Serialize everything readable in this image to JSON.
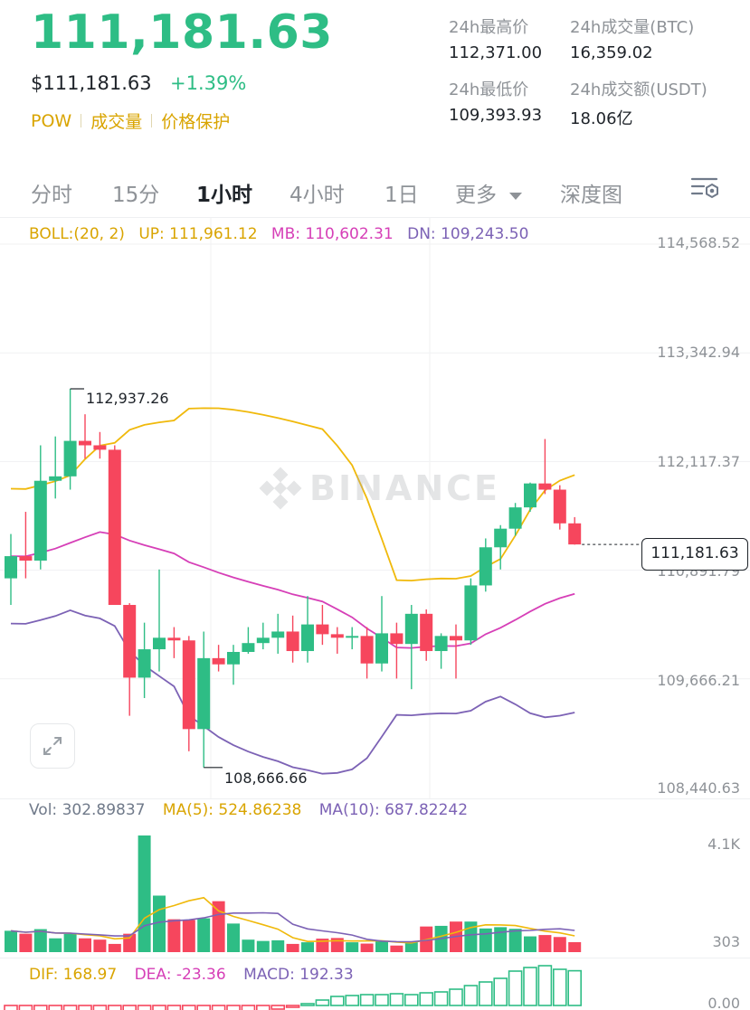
{
  "header": {
    "last_price": "111,181.63",
    "usd_price": "$111,181.63",
    "change_pct": "+1.39%",
    "tags": [
      "POW",
      "成交量",
      "价格保护"
    ]
  },
  "stats": [
    {
      "label": "24h最高价",
      "value": "112,371.00"
    },
    {
      "label": "24h成交量(BTC)",
      "value": "16,359.02"
    },
    {
      "label": "24h最低价",
      "value": "109,393.93"
    },
    {
      "label": "24h成交额(USDT)",
      "value": "18.06亿"
    }
  ],
  "tabs": [
    {
      "label": "分时",
      "active": false
    },
    {
      "label": "15分",
      "active": false
    },
    {
      "label": "1小时",
      "active": true
    },
    {
      "label": "4小时",
      "active": false
    },
    {
      "label": "1日",
      "active": false
    },
    {
      "label": "更多",
      "active": false
    },
    {
      "label": "深度图",
      "active": false
    }
  ],
  "boll": {
    "label": "BOLL:(20, 2)",
    "up": "UP: 111,961.12",
    "mb": "MB: 110,602.31",
    "dn": "DN: 109,243.50"
  },
  "price_axis": [
    "114,568.52",
    "113,342.94",
    "112,117.37",
    "110,891.79",
    "109,666.21",
    "108,440.63"
  ],
  "annotations": {
    "high": "112,937.26",
    "low": "108,666.66",
    "last_price_tag": "111,181.63"
  },
  "watermark": "BINANCE",
  "volume": {
    "vol": "Vol: 302.89837",
    "ma5": "MA(5): 524.86238",
    "ma10": "MA(10): 687.82242",
    "axis": [
      "4.1K",
      "303"
    ]
  },
  "macd": {
    "dif": "DIF: 168.97",
    "dea": "DEA: -23.36",
    "macd": "MACD: 192.33",
    "axis": [
      "0.00"
    ]
  },
  "colors": {
    "up": "#2ebd85",
    "down": "#f6465d",
    "boll_up": "#f0b90b",
    "boll_mb": "#d63fb7",
    "boll_dn": "#7c62b5",
    "accent": "#d9a400"
  },
  "chart_data": {
    "type": "candlestick",
    "interval": "1小时",
    "y_range": [
      108440.63,
      114568.52
    ],
    "candles": [
      {
        "o": 110800,
        "h": 111300,
        "l": 110500,
        "c": 111050
      },
      {
        "o": 111050,
        "h": 111550,
        "l": 110800,
        "c": 111000
      },
      {
        "o": 111000,
        "h": 112300,
        "l": 110900,
        "c": 111900
      },
      {
        "o": 111900,
        "h": 112400,
        "l": 111700,
        "c": 111950
      },
      {
        "o": 111950,
        "h": 112937,
        "l": 111800,
        "c": 112350
      },
      {
        "o": 112350,
        "h": 112650,
        "l": 112150,
        "c": 112300
      },
      {
        "o": 112300,
        "h": 112450,
        "l": 112150,
        "c": 112250
      },
      {
        "o": 112250,
        "h": 112300,
        "l": 110500,
        "c": 110500
      },
      {
        "o": 110500,
        "h": 110520,
        "l": 109250,
        "c": 109680
      },
      {
        "o": 109680,
        "h": 110300,
        "l": 109450,
        "c": 110000
      },
      {
        "o": 110000,
        "h": 110900,
        "l": 109750,
        "c": 110130
      },
      {
        "o": 110130,
        "h": 110250,
        "l": 109900,
        "c": 110100
      },
      {
        "o": 110100,
        "h": 110150,
        "l": 108850,
        "c": 109100
      },
      {
        "o": 109100,
        "h": 110200,
        "l": 108667,
        "c": 109900
      },
      {
        "o": 109900,
        "h": 110050,
        "l": 109750,
        "c": 109830
      },
      {
        "o": 109830,
        "h": 110050,
        "l": 109600,
        "c": 109970
      },
      {
        "o": 109970,
        "h": 110250,
        "l": 109950,
        "c": 110070
      },
      {
        "o": 110070,
        "h": 110300,
        "l": 110000,
        "c": 110130
      },
      {
        "o": 110130,
        "h": 110400,
        "l": 109950,
        "c": 110200
      },
      {
        "o": 110200,
        "h": 110380,
        "l": 109850,
        "c": 109980
      },
      {
        "o": 109980,
        "h": 110600,
        "l": 109850,
        "c": 110280
      },
      {
        "o": 110280,
        "h": 110500,
        "l": 110050,
        "c": 110170
      },
      {
        "o": 110170,
        "h": 110250,
        "l": 109950,
        "c": 110130
      },
      {
        "o": 110130,
        "h": 110250,
        "l": 110000,
        "c": 110150
      },
      {
        "o": 110150,
        "h": 110250,
        "l": 109670,
        "c": 109840
      },
      {
        "o": 109840,
        "h": 110600,
        "l": 109750,
        "c": 110180
      },
      {
        "o": 110180,
        "h": 110300,
        "l": 109670,
        "c": 110060
      },
      {
        "o": 110060,
        "h": 110500,
        "l": 109550,
        "c": 110400
      },
      {
        "o": 110400,
        "h": 110450,
        "l": 109870,
        "c": 109980
      },
      {
        "o": 109980,
        "h": 110180,
        "l": 109780,
        "c": 110150
      },
      {
        "o": 110150,
        "h": 110280,
        "l": 109670,
        "c": 110100
      },
      {
        "o": 110100,
        "h": 110800,
        "l": 110050,
        "c": 110720
      },
      {
        "o": 110720,
        "h": 111250,
        "l": 110650,
        "c": 111150
      },
      {
        "o": 111150,
        "h": 111400,
        "l": 110900,
        "c": 111360
      },
      {
        "o": 111360,
        "h": 111650,
        "l": 111280,
        "c": 111600
      },
      {
        "o": 111600,
        "h": 111880,
        "l": 111550,
        "c": 111870
      },
      {
        "o": 111870,
        "h": 112371,
        "l": 111750,
        "c": 111800
      },
      {
        "o": 111800,
        "h": 111850,
        "l": 111350,
        "c": 111420
      },
      {
        "o": 111420,
        "h": 111490,
        "l": 111180,
        "c": 111182
      }
    ],
    "volume": [
      650,
      560,
      700,
      420,
      550,
      420,
      380,
      250,
      560,
      3550,
      1720,
      1000,
      980,
      1030,
      1550,
      870,
      380,
      340,
      360,
      250,
      300,
      410,
      430,
      300,
      260,
      340,
      200,
      300,
      780,
      800,
      930,
      930,
      720,
      760,
      710,
      480,
      520,
      460,
      303
    ],
    "macd_hist": [
      -150,
      -90,
      -60,
      -60,
      -80,
      -80,
      -60,
      -80,
      -100,
      -120,
      -150,
      -180,
      -200,
      -160,
      -120,
      -80,
      -60,
      -40,
      -20,
      -10,
      10,
      30,
      50,
      55,
      60,
      60,
      65,
      60,
      70,
      75,
      90,
      110,
      130,
      150,
      190,
      210,
      220,
      200,
      192
    ]
  }
}
